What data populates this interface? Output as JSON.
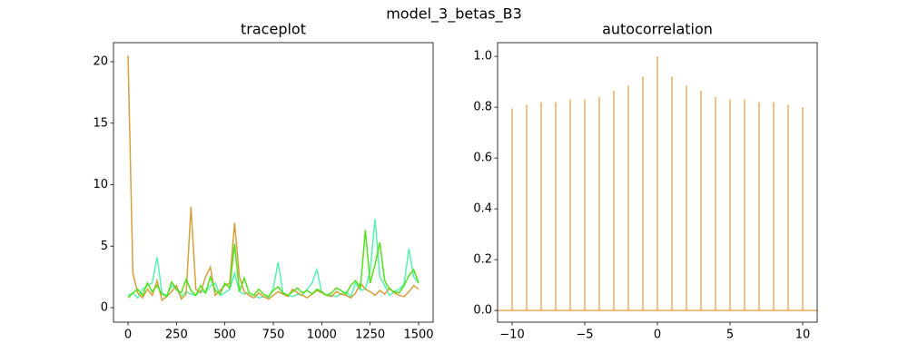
{
  "title": "model_3_betas_B3",
  "chart_data": [
    {
      "type": "line",
      "title": "traceplot",
      "x": [
        0,
        25,
        50,
        75,
        100,
        125,
        150,
        175,
        200,
        225,
        250,
        275,
        300,
        325,
        350,
        375,
        400,
        425,
        450,
        475,
        500,
        525,
        550,
        575,
        600,
        625,
        650,
        675,
        700,
        725,
        750,
        775,
        800,
        825,
        850,
        875,
        900,
        925,
        950,
        975,
        1000,
        1025,
        1050,
        1075,
        1100,
        1125,
        1150,
        1175,
        1200,
        1225,
        1250,
        1275,
        1300,
        1325,
        1350,
        1375,
        1400,
        1425,
        1450,
        1475,
        1500
      ],
      "series": [
        {
          "color": "#57f2b2",
          "values": [
            1.0,
            1.2,
            0.8,
            1.5,
            1.8,
            2.0,
            4.1,
            1.2,
            1.0,
            1.8,
            1.5,
            0.9,
            1.3,
            1.1,
            1.0,
            1.4,
            1.2,
            1.8,
            2.0,
            1.0,
            1.2,
            1.5,
            2.8,
            1.3,
            1.1,
            1.2,
            1.0,
            0.8,
            0.9,
            0.8,
            1.6,
            3.7,
            1.2,
            1.0,
            0.9,
            1.1,
            1.0,
            1.5,
            2.0,
            3.1,
            1.2,
            1.0,
            1.0,
            0.9,
            1.1,
            1.3,
            0.9,
            2.0,
            1.4,
            1.5,
            3.0,
            7.2,
            2.5,
            1.8,
            1.0,
            1.3,
            1.5,
            1.9,
            4.8,
            2.5,
            2.0
          ]
        },
        {
          "color": "#d4a03a",
          "values": [
            20.5,
            2.8,
            1.2,
            0.8,
            1.5,
            1.0,
            2.2,
            0.6,
            0.9,
            1.3,
            1.8,
            0.7,
            1.1,
            8.2,
            1.5,
            1.2,
            2.5,
            3.3,
            1.0,
            1.4,
            1.8,
            2.0,
            6.9,
            2.5,
            1.3,
            1.0,
            0.8,
            1.2,
            0.9,
            0.7,
            1.0,
            1.3,
            1.1,
            0.9,
            1.5,
            1.2,
            1.0,
            0.8,
            1.1,
            1.4,
            1.2,
            1.0,
            0.9,
            1.3,
            1.1,
            1.0,
            0.8,
            1.2,
            2.0,
            1.5,
            1.3,
            1.0,
            1.4,
            1.1,
            1.6,
            1.2,
            1.0,
            0.9,
            1.3,
            1.8,
            1.5
          ]
        },
        {
          "color": "#52e31a",
          "values": [
            0.8,
            1.2,
            1.5,
            1.0,
            2.0,
            1.3,
            1.8,
            1.1,
            0.9,
            2.1,
            1.5,
            1.2,
            2.3,
            1.4,
            1.0,
            1.8,
            1.2,
            2.5,
            1.4,
            1.1,
            2.0,
            1.6,
            5.2,
            1.3,
            2.4,
            1.2,
            1.0,
            1.5,
            1.1,
            0.9,
            1.4,
            1.7,
            1.2,
            1.0,
            1.3,
            1.6,
            1.2,
            1.4,
            1.1,
            1.5,
            1.3,
            1.0,
            1.2,
            1.6,
            1.4,
            1.1,
            1.8,
            2.2,
            1.6,
            6.3,
            2.0,
            3.5,
            5.3,
            2.2,
            1.5,
            1.3,
            1.2,
            1.8,
            2.6,
            3.1,
            2.0
          ]
        }
      ],
      "xlim": [
        -75,
        1575
      ],
      "ylim": [
        -1.18,
        21.55
      ],
      "xticks": [
        0,
        250,
        500,
        750,
        1000,
        1250,
        1500
      ],
      "yticks": [
        0,
        5,
        10,
        15,
        20
      ]
    },
    {
      "type": "stem",
      "title": "autocorrelation",
      "color": "#f0ab55",
      "x": [
        -10,
        -9,
        -8,
        -7,
        -6,
        -5,
        -4,
        -3,
        -2,
        -1,
        0,
        1,
        2,
        3,
        4,
        5,
        6,
        7,
        8,
        9,
        10
      ],
      "values": [
        0.795,
        0.81,
        0.82,
        0.82,
        0.83,
        0.83,
        0.84,
        0.865,
        0.885,
        0.92,
        1.0,
        0.92,
        0.885,
        0.865,
        0.84,
        0.83,
        0.83,
        0.82,
        0.82,
        0.81,
        0.8
      ],
      "baseline": 0,
      "xlim": [
        -11,
        11
      ],
      "ylim": [
        -0.046,
        1.054
      ],
      "xticks": [
        {
          "value": -10,
          "label": "−10"
        },
        {
          "value": -5,
          "label": "−5"
        },
        0,
        5,
        10
      ],
      "yticks": [
        {
          "value": 0,
          "label": "0.0"
        },
        0.2,
        0.4,
        0.6,
        0.8,
        {
          "value": 1,
          "label": "1.0"
        }
      ]
    }
  ]
}
